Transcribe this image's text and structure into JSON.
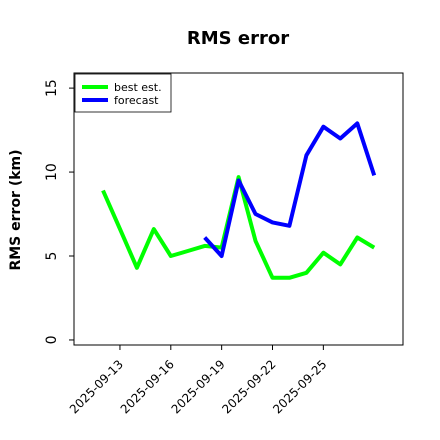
{
  "chart_data": {
    "type": "line",
    "title": "RMS error",
    "xlabel": "",
    "ylabel": "RMS error (km)",
    "x": [
      "2025-09-12",
      "2025-09-13",
      "2025-09-14",
      "2025-09-15",
      "2025-09-16",
      "2025-09-17",
      "2025-09-18",
      "2025-09-19",
      "2025-09-20",
      "2025-09-21",
      "2025-09-22",
      "2025-09-23",
      "2025-09-24",
      "2025-09-25",
      "2025-09-26",
      "2025-09-27",
      "2025-09-28",
      "2025-09-29"
    ],
    "x_tick_labels": [
      "2025-09-13",
      "2025-09-16",
      "2025-09-19",
      "2025-09-22",
      "2025-09-25"
    ],
    "ylim": [
      -0.3,
      15.9
    ],
    "y_ticks": [
      0,
      5,
      10,
      15
    ],
    "series": [
      {
        "name": "best est.",
        "color": "#00ff00",
        "values": [
          8.9,
          6.6,
          4.3,
          6.6,
          5.0,
          5.3,
          5.6,
          5.5,
          9.7,
          5.9,
          3.7,
          3.7,
          4.0,
          5.2,
          4.5,
          6.1,
          5.5,
          null
        ]
      },
      {
        "name": "forecast",
        "color": "#0000ff",
        "values": [
          null,
          null,
          null,
          null,
          null,
          null,
          6.1,
          5.0,
          9.5,
          7.5,
          7.0,
          6.8,
          11.0,
          12.7,
          12.0,
          12.9,
          9.8,
          null
        ]
      }
    ],
    "grid": false,
    "legend_position": "top-left"
  }
}
